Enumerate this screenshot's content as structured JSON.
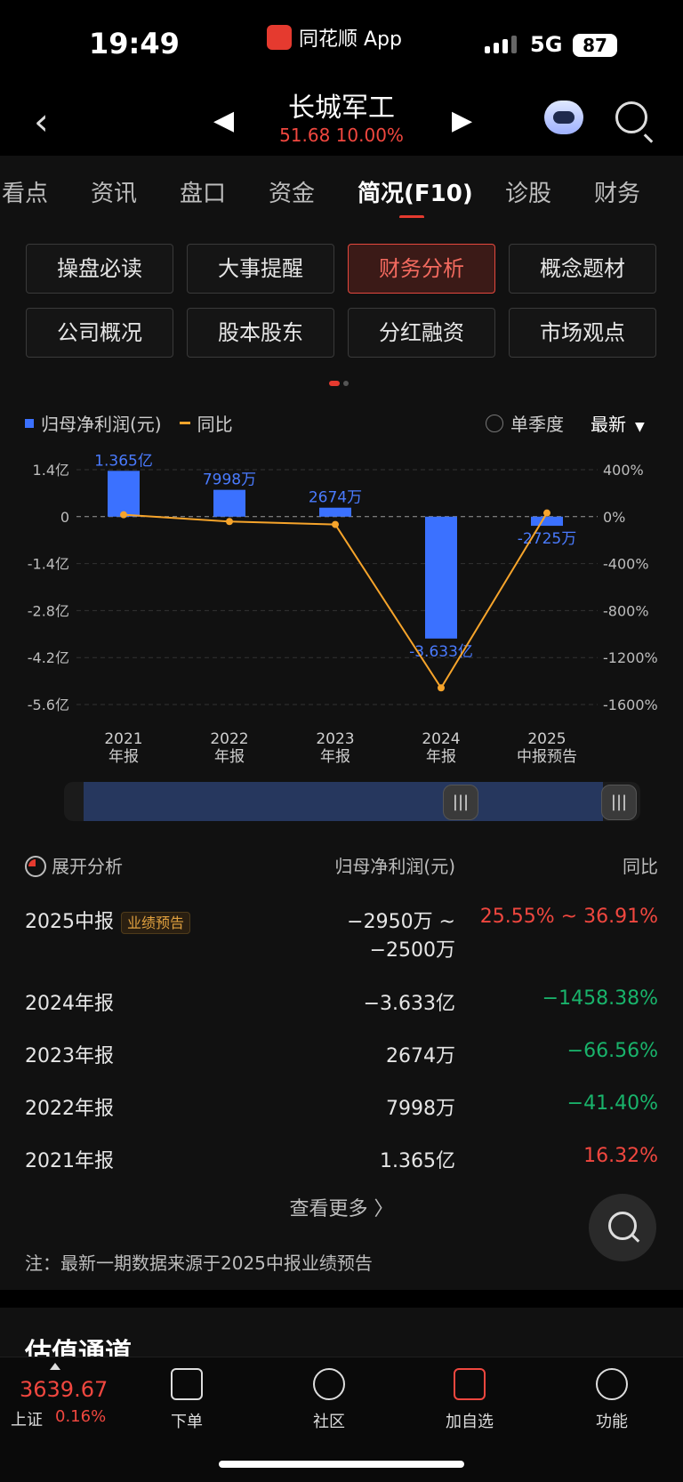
{
  "status_bar": {
    "time": "19:49",
    "app_name": "同花顺 App",
    "network": "5G",
    "battery": "87"
  },
  "header": {
    "title": "长城军工",
    "price_change": "51.68 10.00%"
  },
  "tabs": [
    "看点",
    "资讯",
    "盘口",
    "资金",
    "简况(F10)",
    "诊股",
    "财务"
  ],
  "active_tab": "简况(F10)",
  "grid_buttons": [
    "操盘必读",
    "大事提醒",
    "财务分析",
    "概念题材",
    "公司概况",
    "股本股东",
    "分红融资",
    "市场观点"
  ],
  "active_button": "财务分析",
  "legend": {
    "bar_label": "归母净利润(元)",
    "line_label": "同比",
    "season_label": "单季度",
    "latest_label": "最新"
  },
  "chart_data": {
    "type": "bar",
    "categories": [
      "2021\n年报",
      "2022\n年报",
      "2023\n年报",
      "2024\n年报",
      "2025\n中报预告"
    ],
    "category_lines": [
      [
        "2021",
        "年报"
      ],
      [
        "2022",
        "年报"
      ],
      [
        "2023",
        "年报"
      ],
      [
        "2024",
        "年报"
      ],
      [
        "2025",
        "中报预告"
      ]
    ],
    "series": [
      {
        "name": "归母净利润(元)",
        "values": [
          1.365,
          0.7998,
          0.2674,
          -3.633,
          -0.2725
        ],
        "unit": "亿",
        "data_labels": [
          "1.365亿",
          "7998万",
          "2674万",
          "-3.633亿",
          "-2725万"
        ],
        "color": "#3b71ff"
      },
      {
        "name": "同比",
        "values": [
          16.32,
          -41.4,
          -66.56,
          -1458.38,
          31.23
        ],
        "unit": "%",
        "color": "#f6a42b"
      }
    ],
    "y_left_ticks": [
      "1.4亿",
      "0",
      "-1.4亿",
      "-2.8亿",
      "-4.2亿",
      "-5.6亿"
    ],
    "y_left_tick_values": [
      1.4,
      0,
      -1.4,
      -2.8,
      -4.2,
      -5.6
    ],
    "y_right_ticks": [
      "400%",
      "0%",
      "-400%",
      "-800%",
      "-1200%",
      "-1600%"
    ],
    "y_right_tick_values": [
      400,
      0,
      -400,
      -800,
      -1200,
      -1600
    ],
    "ylim_left": [
      -5.6,
      1.4
    ],
    "ylim_right": [
      -1600,
      400
    ],
    "grid": true
  },
  "table": {
    "header": {
      "expand_label": "展开分析",
      "col_value": "归母净利润(元)",
      "col_yoy": "同比"
    },
    "rows": [
      {
        "label": "2025中报",
        "badge": "业绩预告",
        "value_line1": "−2950万 ~",
        "value_line2": "−2500万",
        "yoy": "25.55% ~ 36.91%",
        "trend": "up"
      },
      {
        "label": "2024年报",
        "value": "−3.633亿",
        "yoy": "−1458.38%",
        "trend": "down"
      },
      {
        "label": "2023年报",
        "value": "2674万",
        "yoy": "−66.56%",
        "trend": "down"
      },
      {
        "label": "2022年报",
        "value": "7998万",
        "yoy": "−41.40%",
        "trend": "down"
      },
      {
        "label": "2021年报",
        "value": "1.365亿",
        "yoy": "16.32%",
        "trend": "up"
      }
    ],
    "more_label": "查看更多 〉",
    "note": "注：最新一期数据来源于2025中报业绩预告"
  },
  "next_section_title": "估值通道",
  "bottom_bar": {
    "index_value": "3639.67",
    "index_name": "上证",
    "index_change": "0.16%",
    "items": [
      "下单",
      "社区",
      "加自选",
      "功能"
    ]
  }
}
